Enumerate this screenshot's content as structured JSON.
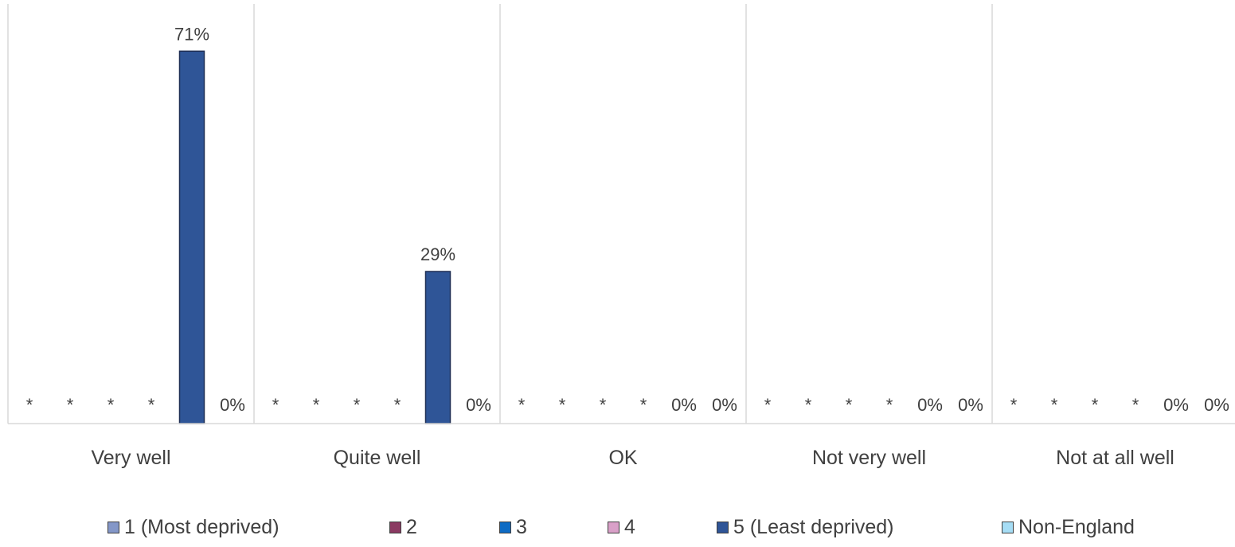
{
  "chart_data": {
    "type": "bar",
    "categories": [
      "Very well",
      "Quite well",
      "OK",
      "Not very well",
      "Not at all well"
    ],
    "series": [
      {
        "name": "1 (Most deprived)",
        "color": "#8497C8",
        "values": [
          null,
          null,
          null,
          null,
          null
        ],
        "labels": [
          "*",
          "*",
          "*",
          "*",
          "*"
        ]
      },
      {
        "name": "2",
        "color": "#8B3A62",
        "values": [
          null,
          null,
          null,
          null,
          null
        ],
        "labels": [
          "*",
          "*",
          "*",
          "*",
          "*"
        ]
      },
      {
        "name": "3",
        "color": "#0E6BC4",
        "values": [
          null,
          null,
          null,
          null,
          null
        ],
        "labels": [
          "*",
          "*",
          "*",
          "*",
          "*"
        ]
      },
      {
        "name": "4",
        "color": "#D9A0C8",
        "values": [
          null,
          null,
          null,
          null,
          null
        ],
        "labels": [
          "*",
          "*",
          "*",
          "*",
          "*"
        ]
      },
      {
        "name": "5 (Least deprived)",
        "color": "#2F5597",
        "values": [
          71,
          29,
          0,
          0,
          0
        ],
        "labels": [
          "71%",
          "29%",
          "0%",
          "0%",
          "0%"
        ]
      },
      {
        "name": "Non-England",
        "color": "#A6DDF5",
        "values": [
          0,
          0,
          0,
          0,
          0
        ],
        "labels": [
          "0%",
          "0%",
          "0%",
          "0%",
          "0%"
        ]
      }
    ],
    "ylim": [
      0,
      80
    ],
    "grid": "vertical category separators",
    "legend": "bottom"
  }
}
